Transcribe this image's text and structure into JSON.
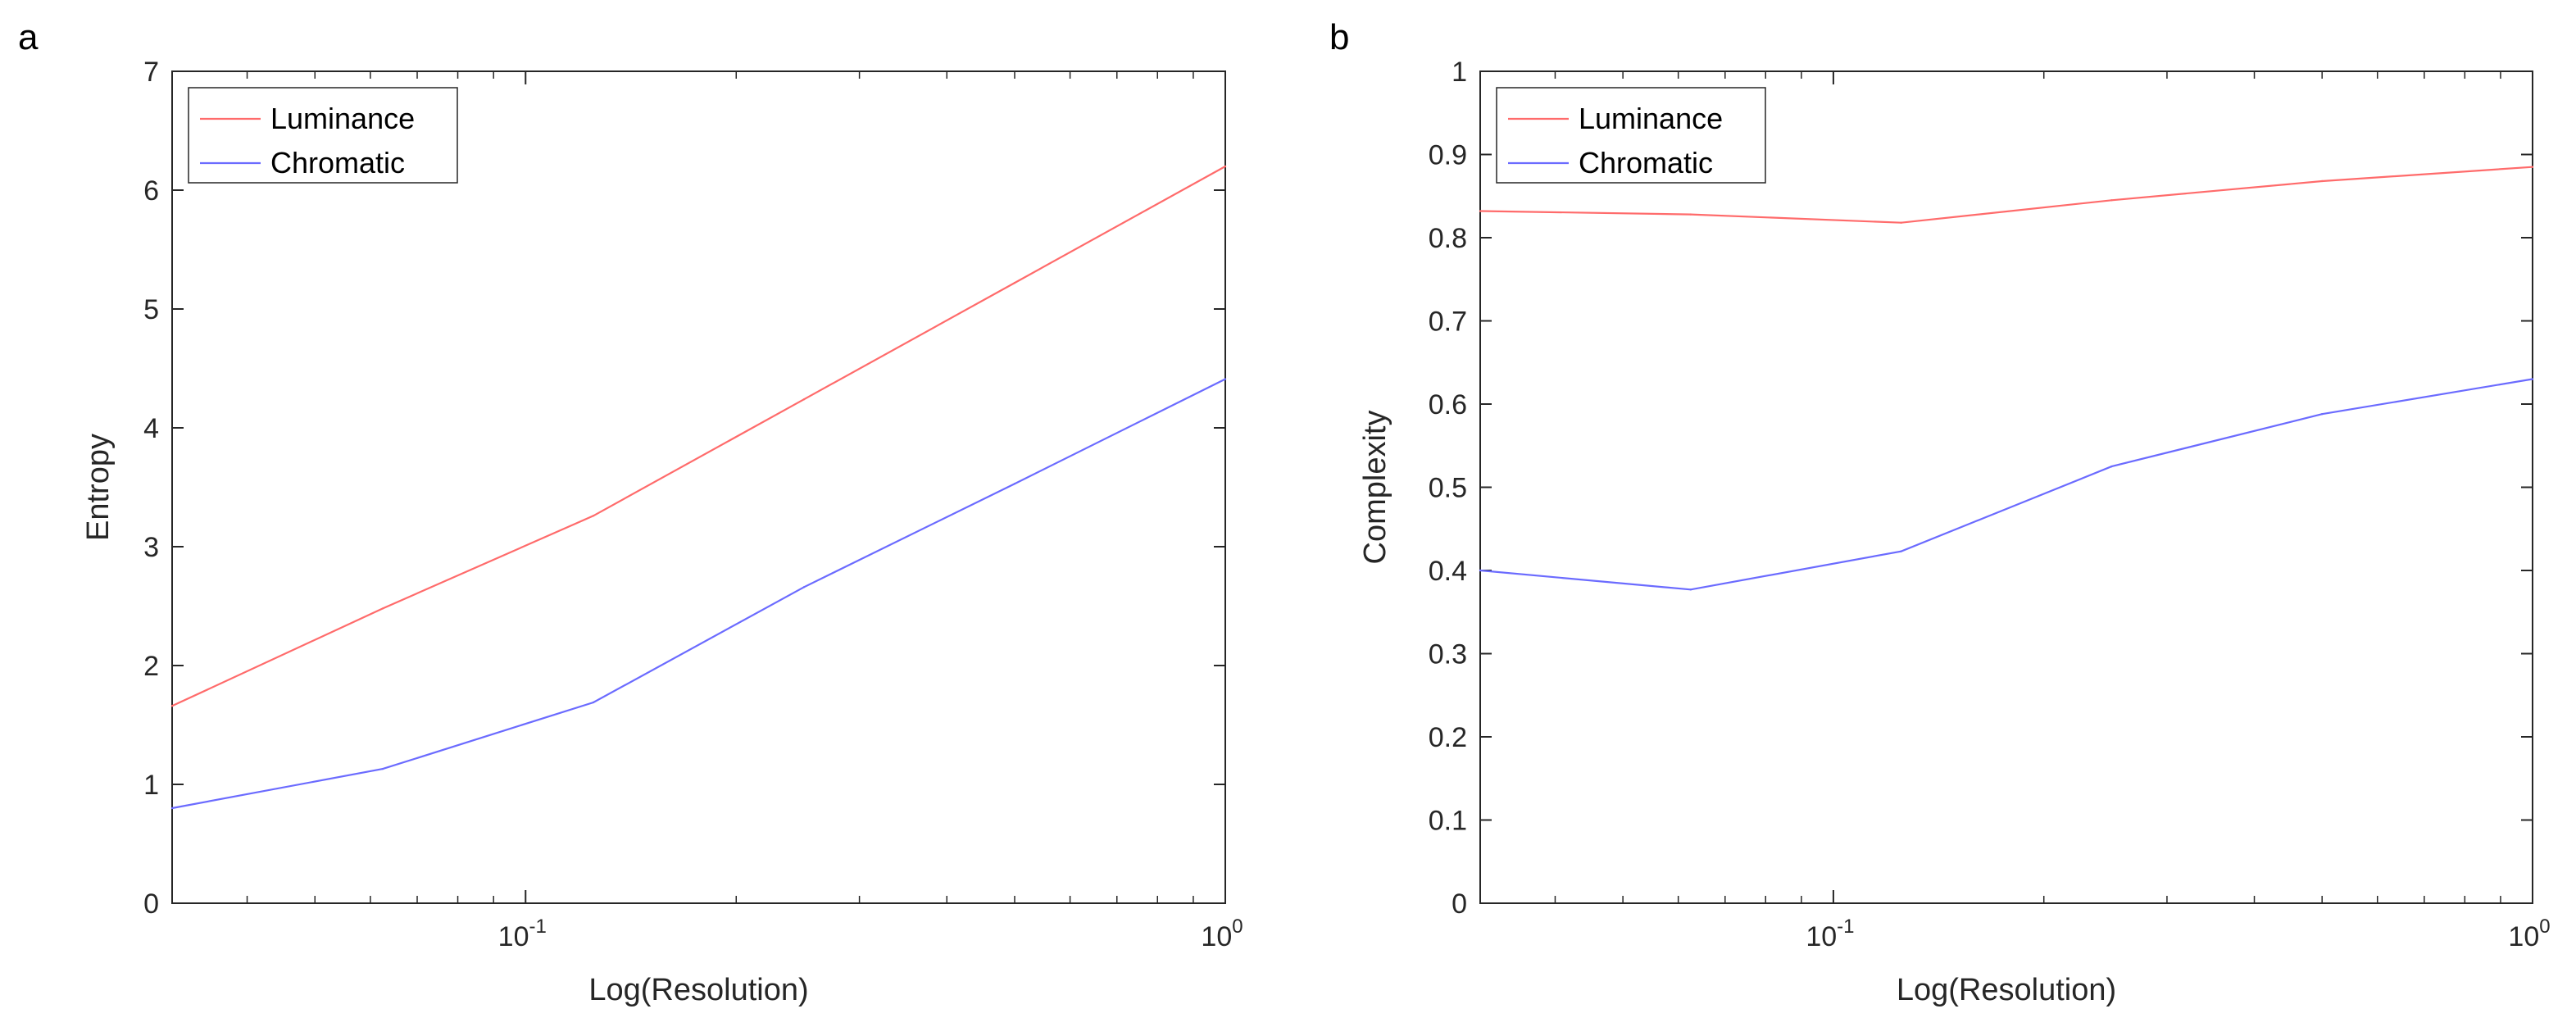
{
  "colors": {
    "luminance": "#ff6b6b",
    "chromatic": "#6b6bff",
    "axis": "#262626",
    "background": "#ffffff"
  },
  "chart_data": [
    {
      "type": "line",
      "panel_label": "a",
      "xlabel": "Log(Resolution)",
      "ylabel": "Entropy",
      "xscale": "log",
      "xlim": [
        0.03125,
        1
      ],
      "ylim": [
        0,
        7
      ],
      "yticks": [
        0,
        1,
        2,
        3,
        4,
        5,
        6,
        7
      ],
      "ytick_labels": [
        "0",
        "1",
        "2",
        "3",
        "4",
        "5",
        "6",
        "7"
      ],
      "xticks": [
        0.1,
        1
      ],
      "xtick_bases": [
        "10",
        "10"
      ],
      "xtick_exponents": [
        "-1",
        "0"
      ],
      "legend": {
        "position": "top-left",
        "entries": [
          "Luminance",
          "Chromatic"
        ]
      },
      "series": [
        {
          "name": "Luminance",
          "color": "#ff6b6b",
          "x": [
            0.03125,
            0.0625,
            0.125,
            0.25,
            0.5,
            1
          ],
          "y": [
            1.66,
            2.48,
            3.26,
            4.24,
            5.22,
            6.2
          ]
        },
        {
          "name": "Chromatic",
          "color": "#6b6bff",
          "x": [
            0.03125,
            0.0625,
            0.125,
            0.25,
            0.5,
            1
          ],
          "y": [
            0.8,
            1.13,
            1.69,
            2.66,
            3.53,
            4.41
          ]
        }
      ]
    },
    {
      "type": "line",
      "panel_label": "b",
      "xlabel": "Log(Resolution)",
      "ylabel": "Complexity",
      "xscale": "log",
      "xlim": [
        0.03125,
        1
      ],
      "ylim": [
        0,
        1
      ],
      "yticks": [
        0,
        0.1,
        0.2,
        0.3,
        0.4,
        0.5,
        0.6,
        0.7,
        0.8,
        0.9,
        1
      ],
      "ytick_labels": [
        "0",
        "0.1",
        "0.2",
        "0.3",
        "0.4",
        "0.5",
        "0.6",
        "0.7",
        "0.8",
        "0.9",
        "1"
      ],
      "xticks": [
        0.1,
        1
      ],
      "xtick_bases": [
        "10",
        "10"
      ],
      "xtick_exponents": [
        "-1",
        "0"
      ],
      "legend": {
        "position": "top-left",
        "entries": [
          "Luminance",
          "Chromatic"
        ]
      },
      "series": [
        {
          "name": "Luminance",
          "color": "#ff6b6b",
          "x": [
            0.03125,
            0.0625,
            0.125,
            0.25,
            0.5,
            1
          ],
          "y": [
            0.832,
            0.828,
            0.818,
            0.845,
            0.868,
            0.885
          ]
        },
        {
          "name": "Chromatic",
          "color": "#6b6bff",
          "x": [
            0.03125,
            0.0625,
            0.125,
            0.25,
            0.5,
            1
          ],
          "y": [
            0.4,
            0.377,
            0.423,
            0.525,
            0.588,
            0.63
          ]
        }
      ]
    }
  ]
}
